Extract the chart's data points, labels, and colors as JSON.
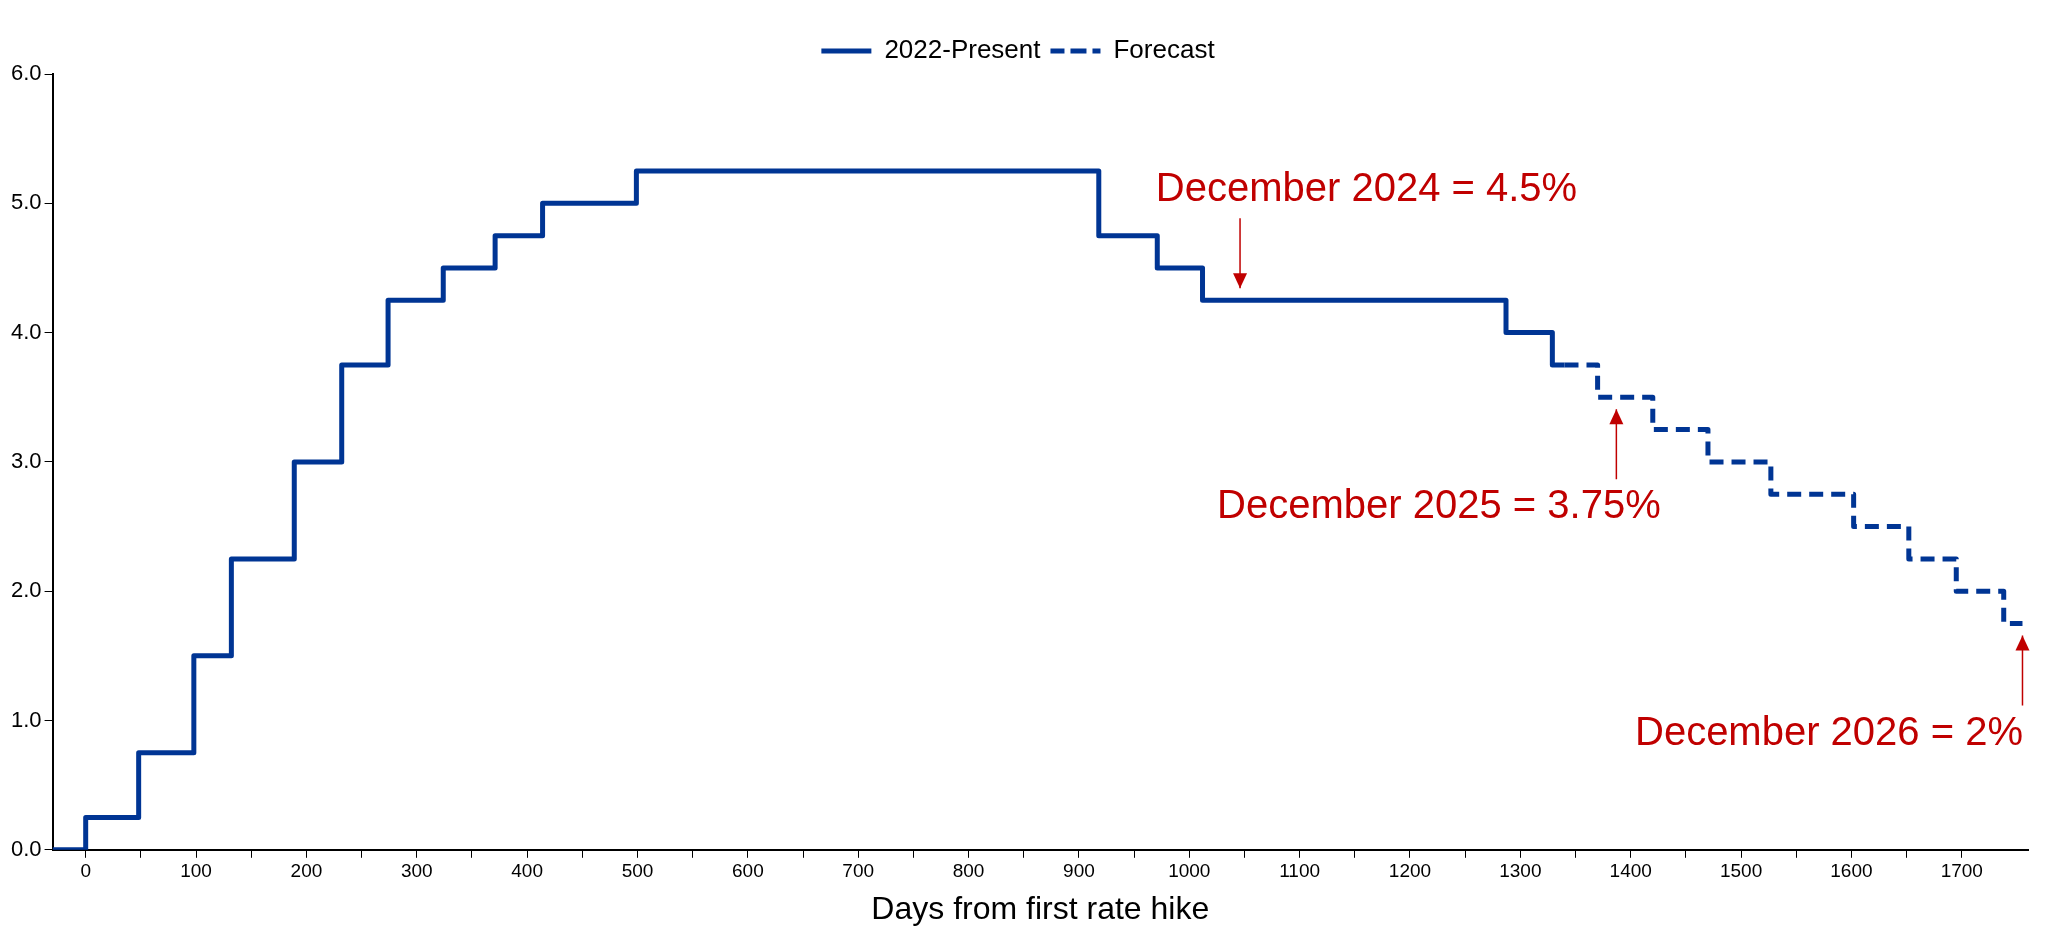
{
  "chart_data": {
    "type": "step",
    "xlabel": "Days from first rate hike",
    "xlim": [
      -30,
      1760
    ],
    "ylim": [
      0,
      6
    ],
    "xticks": [
      {
        "value": 0,
        "label": "0"
      },
      {
        "value": 50,
        "label": null
      },
      {
        "value": 100,
        "label": "100"
      },
      {
        "value": 150,
        "label": null
      },
      {
        "value": 200,
        "label": "200"
      },
      {
        "value": 250,
        "label": null
      },
      {
        "value": 300,
        "label": "300"
      },
      {
        "value": 350,
        "label": null
      },
      {
        "value": 400,
        "label": "400"
      },
      {
        "value": 450,
        "label": null
      },
      {
        "value": 500,
        "label": "500"
      },
      {
        "value": 550,
        "label": null
      },
      {
        "value": 600,
        "label": "600"
      },
      {
        "value": 650,
        "label": null
      },
      {
        "value": 700,
        "label": "700"
      },
      {
        "value": 750,
        "label": null
      },
      {
        "value": 800,
        "label": "800"
      },
      {
        "value": 850,
        "label": null
      },
      {
        "value": 900,
        "label": "900"
      },
      {
        "value": 950,
        "label": null
      },
      {
        "value": 1000,
        "label": "1000"
      },
      {
        "value": 1050,
        "label": null
      },
      {
        "value": 1100,
        "label": "1100"
      },
      {
        "value": 1150,
        "label": null
      },
      {
        "value": 1200,
        "label": "1200"
      },
      {
        "value": 1250,
        "label": null
      },
      {
        "value": 1300,
        "label": "1300"
      },
      {
        "value": 1350,
        "label": null
      },
      {
        "value": 1400,
        "label": "1400"
      },
      {
        "value": 1450,
        "label": null
      },
      {
        "value": 1500,
        "label": "1500"
      },
      {
        "value": 1550,
        "label": null
      },
      {
        "value": 1600,
        "label": "1600"
      },
      {
        "value": 1650,
        "label": null
      },
      {
        "value": 1700,
        "label": "1700"
      }
    ],
    "yticks": [
      {
        "value": 0,
        "label": "0.0"
      },
      {
        "value": 1,
        "label": "1.0"
      },
      {
        "value": 2,
        "label": "2.0"
      },
      {
        "value": 3,
        "label": "3.0"
      },
      {
        "value": 4,
        "label": "4.0"
      },
      {
        "value": 5,
        "label": "5.0"
      },
      {
        "value": 6,
        "label": "6.0"
      }
    ],
    "grid": false,
    "legend": "top",
    "marker": "none",
    "series": [
      {
        "name": "2022-Present",
        "color": "#003594",
        "line_style": "solid",
        "x": [
          -30,
          0,
          48,
          98,
          132,
          189,
          232,
          274,
          324,
          371,
          414,
          499,
          918,
          971,
          1012,
          1287,
          1329,
          1340
        ],
        "values": [
          0,
          0.25,
          0.75,
          1.5,
          2.25,
          3,
          3.75,
          4.25,
          4.5,
          4.75,
          5,
          5.25,
          4.75,
          4.5,
          4.25,
          4,
          3.75,
          3.75
        ]
      },
      {
        "name": "Forecast",
        "color": "#003594",
        "line_style": "dashed",
        "x": [
          1340,
          1370,
          1420,
          1470,
          1527,
          1602,
          1652,
          1695,
          1738,
          1755
        ],
        "values": [
          3.75,
          3.5,
          3.25,
          3,
          2.75,
          2.5,
          2.25,
          2,
          1.75,
          1.75
        ]
      }
    ],
    "annotations": [
      {
        "text": "December 2024 = 4.5%",
        "x": 1046,
        "y": 4.25
      },
      {
        "text": "December 2025 = 3.75%",
        "x": 1387,
        "y": 3.5
      },
      {
        "text": "December 2026 = 2%",
        "x": 1755,
        "y": 1.75
      }
    ]
  }
}
